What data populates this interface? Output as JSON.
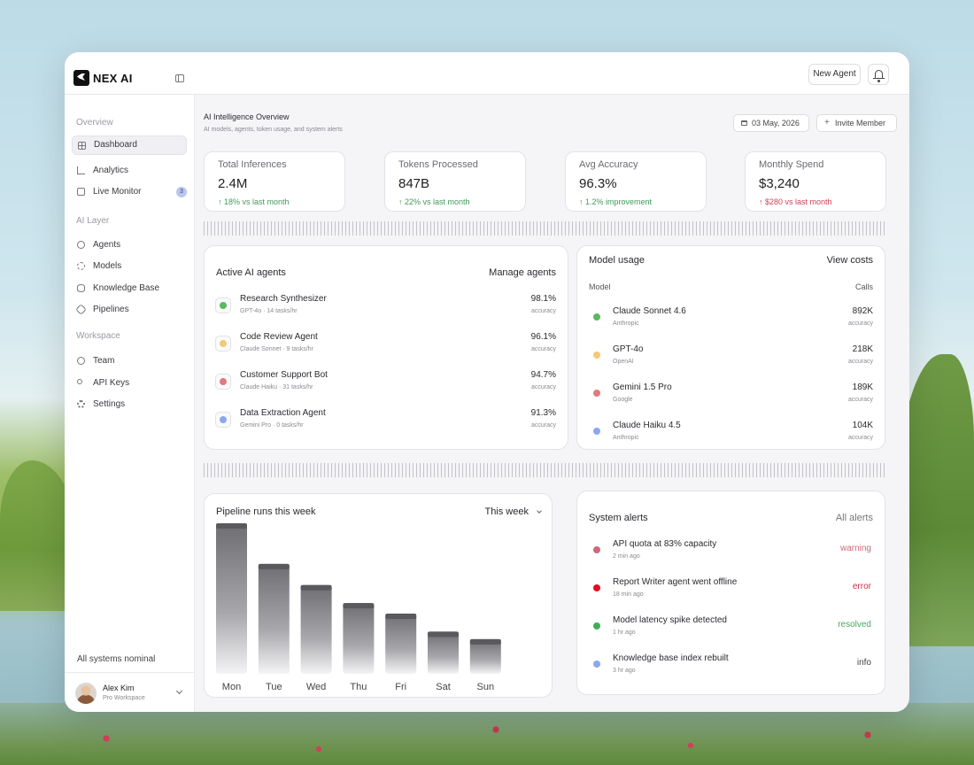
{
  "brand": {
    "name": "NEX AI"
  },
  "topbar": {
    "new_agent_label": "New Agent"
  },
  "sidebar": {
    "sections": [
      {
        "label": "Overview"
      },
      {
        "label": "AI Layer"
      },
      {
        "label": "Workspace"
      }
    ],
    "items": [
      {
        "label": "Dashboard",
        "icon": "dashboard-icon",
        "active": true
      },
      {
        "label": "Analytics",
        "icon": "analytics-icon"
      },
      {
        "label": "Live Monitor",
        "icon": "monitor-icon",
        "badge": "3"
      },
      {
        "label": "Agents",
        "icon": "agents-icon"
      },
      {
        "label": "Models",
        "icon": "models-icon"
      },
      {
        "label": "Knowledge Base",
        "icon": "database-icon"
      },
      {
        "label": "Pipelines",
        "icon": "pipelines-icon"
      },
      {
        "label": "Team",
        "icon": "team-icon"
      },
      {
        "label": "API Keys",
        "icon": "key-icon"
      },
      {
        "label": "Settings",
        "icon": "gear-icon"
      }
    ],
    "status": "All systems nominal",
    "user": {
      "name": "Alex Kim",
      "workspace": "Pro Workspace"
    }
  },
  "header": {
    "title": "AI Intelligence Overview",
    "subtitle": "AI models, agents, token usage, and system alerts",
    "date": "03 May, 2026",
    "invite_label": "Invite Member"
  },
  "stats": [
    {
      "label": "Total Inferences",
      "value": "2.4M",
      "delta": "↑ 18% vs last month",
      "tone": "good"
    },
    {
      "label": "Tokens Processed",
      "value": "847B",
      "delta": "↑ 22% vs last month",
      "tone": "good"
    },
    {
      "label": "Avg Accuracy",
      "value": "96.3%",
      "delta": "↑ 1.2% improvement",
      "tone": "good"
    },
    {
      "label": "Monthly Spend",
      "value": "$3,240",
      "delta": "↑ $280 vs last month",
      "tone": "bad"
    }
  ],
  "agents_panel": {
    "title": "Active AI agents",
    "link": "Manage agents",
    "rows": [
      {
        "name": "Research Synthesizer",
        "meta": "GPT-4o · 14 tasks/hr",
        "value": "98.1%",
        "value_label": "accuracy",
        "color": "#5cb85c"
      },
      {
        "name": "Code Review Agent",
        "meta": "Claude Sonnet · 9 tasks/hr",
        "value": "96.1%",
        "value_label": "accuracy",
        "color": "#f5c978"
      },
      {
        "name": "Customer Support Bot",
        "meta": "Claude Haiku · 31 tasks/hr",
        "value": "94.7%",
        "value_label": "accuracy",
        "color": "#e07a80"
      },
      {
        "name": "Data Extraction Agent",
        "meta": "Gemini Pro · 0 tasks/hr",
        "value": "91.3%",
        "value_label": "accuracy",
        "color": "#8aa8ee"
      }
    ]
  },
  "models_panel": {
    "title": "Model usage",
    "link": "View costs",
    "col_model": "Model",
    "col_calls": "Calls",
    "rows": [
      {
        "name": "Claude Sonnet 4.6",
        "meta": "Anthropic",
        "value": "892K",
        "value_label": "accuracy",
        "color": "#5cb85c"
      },
      {
        "name": "GPT-4o",
        "meta": "OpenAI",
        "value": "218K",
        "value_label": "accuracy",
        "color": "#f5c978"
      },
      {
        "name": "Gemini 1.5 Pro",
        "meta": "Google",
        "value": "189K",
        "value_label": "accuracy",
        "color": "#e07a80"
      },
      {
        "name": "Claude Haiku 4.5",
        "meta": "Anthropic",
        "value": "104K",
        "value_label": "accuracy",
        "color": "#8aa8ee"
      }
    ]
  },
  "pipeline_panel": {
    "title": "Pipeline runs this week",
    "period": "This week"
  },
  "chart_data": {
    "type": "bar",
    "categories": [
      "Mon",
      "Tue",
      "Wed",
      "Thu",
      "Fri",
      "Sat",
      "Sun"
    ],
    "values": [
      100,
      73,
      59,
      47,
      40,
      28,
      23
    ],
    "ylim": [
      0,
      100
    ]
  },
  "alerts_panel": {
    "title": "System alerts",
    "link": "All alerts",
    "rows": [
      {
        "name": "API quota at 83% capacity",
        "meta": "2 min ago",
        "status": "warning",
        "color": "#cc6a78",
        "status_color": "#cc6a78"
      },
      {
        "name": "Report Writer agent went offline",
        "meta": "18 min ago",
        "status": "error",
        "color": "#e01020",
        "status_color": "#d0304a"
      },
      {
        "name": "Model latency spike detected",
        "meta": "1 hr ago",
        "status": "resolved",
        "color": "#3fae5a",
        "status_color": "#4aa860"
      },
      {
        "name": "Knowledge base index rebuilt",
        "meta": "3 hr ago",
        "status": "info",
        "color": "#8aa8ee",
        "status_color": "#444444"
      }
    ]
  }
}
